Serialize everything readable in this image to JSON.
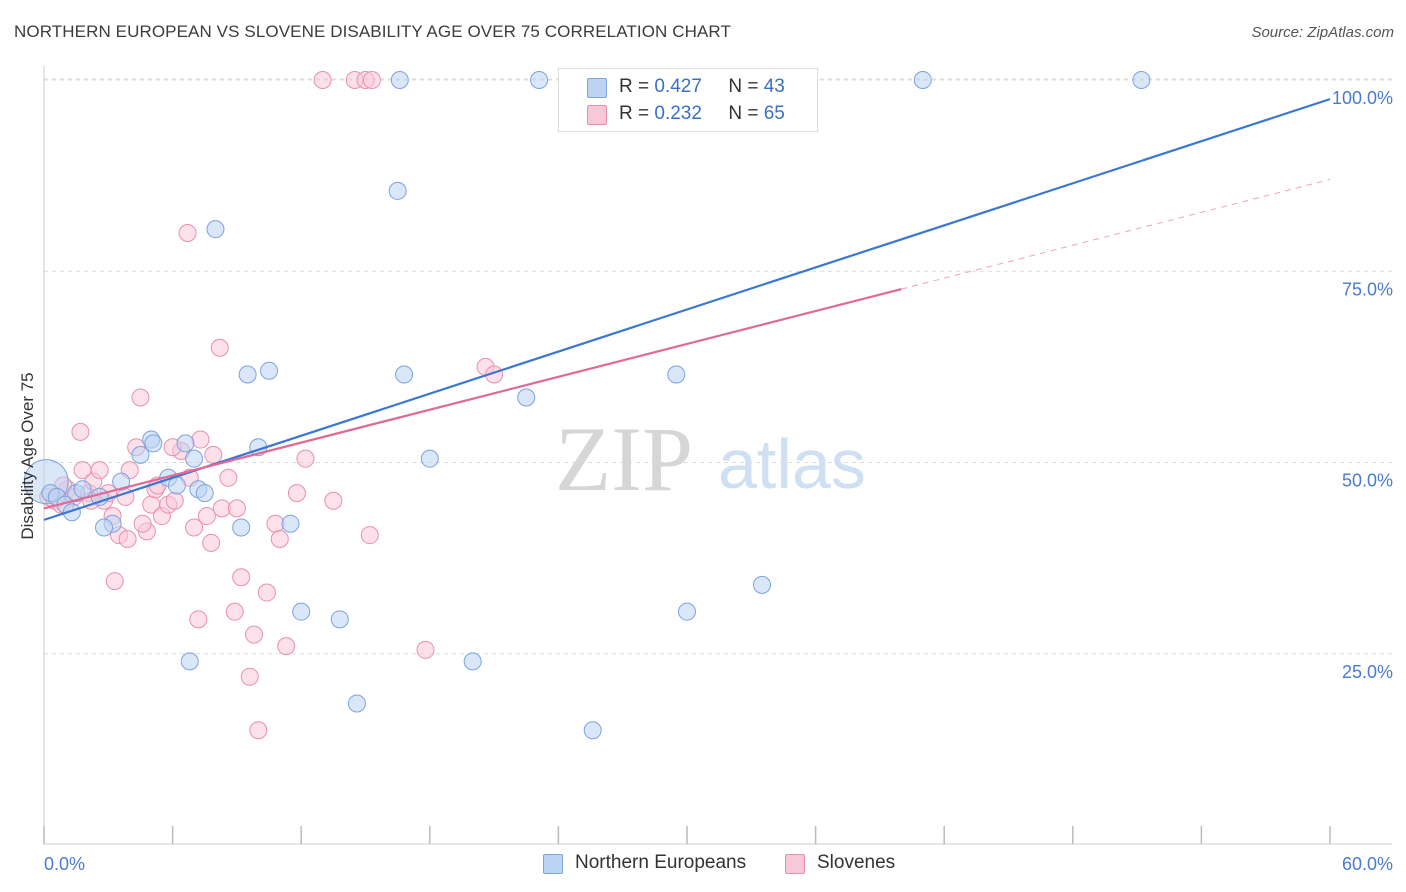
{
  "title": "NORTHERN EUROPEAN VS SLOVENE DISABILITY AGE OVER 75 CORRELATION CHART",
  "source": "Source: ZipAtlas.com",
  "watermark": {
    "zip": "ZIP",
    "atlas": "atlas"
  },
  "legend": {
    "r_label": "R =",
    "n_label": "N =",
    "rows": [
      {
        "r": "0.427",
        "n": "43"
      },
      {
        "r": "0.232",
        "n": "65"
      }
    ]
  },
  "bottom_legend": [
    "Northern Europeans",
    "Slovenes"
  ],
  "colors": {
    "blue": "#3a78d4",
    "blue_fill": "#bcd3f2",
    "pink": "#e06a96",
    "pink_fill": "#f9c8d8",
    "axis_label": "#4a7cc9"
  },
  "chart_data": {
    "type": "scatter",
    "title": "NORTHERN EUROPEAN VS SLOVENE DISABILITY AGE OVER 75 CORRELATION CHART",
    "xlabel": "",
    "ylabel": "Disability Age Over 75",
    "xlim": [
      0,
      60
    ],
    "ylim": [
      0,
      105
    ],
    "x_tick_labels": [
      "0.0%",
      "60.0%"
    ],
    "y_tick_labels": [
      "100.0%",
      "75.0%",
      "50.0%",
      "25.0%"
    ],
    "y_ticks": [
      100,
      75,
      50,
      25
    ],
    "grid": true,
    "series": [
      {
        "name": "Northern Europeans",
        "color": "#3a78d4",
        "trend": {
          "x": [
            0,
            60
          ],
          "y": [
            42.5,
            97.5
          ],
          "dashed_from": null
        },
        "points": [
          [
            0.1,
            47.5
          ],
          [
            0.3,
            46
          ],
          [
            0.6,
            45.5
          ],
          [
            1.0,
            44.5
          ],
          [
            1.5,
            46
          ],
          [
            1.8,
            46.5
          ],
          [
            2.6,
            45.5
          ],
          [
            3.2,
            42
          ],
          [
            3.6,
            47.5
          ],
          [
            4.5,
            51
          ],
          [
            5.0,
            53
          ],
          [
            5.8,
            48
          ],
          [
            6.2,
            47
          ],
          [
            6.6,
            52.5
          ],
          [
            7.0,
            50.5
          ],
          [
            7.2,
            46.5
          ],
          [
            7.5,
            46
          ],
          [
            8.0,
            80.5
          ],
          [
            9.2,
            41.5
          ],
          [
            9.5,
            61.5
          ],
          [
            10.0,
            52
          ],
          [
            10.5,
            62
          ],
          [
            11.5,
            42
          ],
          [
            12.0,
            30.5
          ],
          [
            13.8,
            29.5
          ],
          [
            14.6,
            18.5
          ],
          [
            16.5,
            85.5
          ],
          [
            16.6,
            100
          ],
          [
            16.8,
            61.5
          ],
          [
            18.0,
            50.5
          ],
          [
            20.0,
            24
          ],
          [
            22.5,
            58.5
          ],
          [
            23.1,
            100
          ],
          [
            25.6,
            15
          ],
          [
            29.5,
            61.5
          ],
          [
            30.0,
            30.5
          ],
          [
            33.5,
            34
          ],
          [
            41.0,
            100
          ],
          [
            51.2,
            100
          ],
          [
            5.1,
            52.5
          ],
          [
            6.8,
            24
          ],
          [
            2.8,
            41.5
          ],
          [
            1.3,
            43.5
          ]
        ]
      },
      {
        "name": "Slovenes",
        "color": "#e06a96",
        "trend": {
          "x": [
            0,
            60
          ],
          "y": [
            44,
            87
          ],
          "dashed_from": 40
        },
        "points": [
          [
            0.2,
            45.5
          ],
          [
            0.5,
            45
          ],
          [
            0.8,
            44.5
          ],
          [
            1.1,
            46.5
          ],
          [
            1.4,
            45.5
          ],
          [
            1.8,
            49
          ],
          [
            2.1,
            46
          ],
          [
            2.3,
            47.5
          ],
          [
            2.6,
            49
          ],
          [
            2.8,
            45
          ],
          [
            3.0,
            46
          ],
          [
            3.2,
            43
          ],
          [
            3.5,
            40.5
          ],
          [
            3.8,
            45.5
          ],
          [
            4.0,
            49
          ],
          [
            4.3,
            52
          ],
          [
            4.5,
            58.5
          ],
          [
            4.8,
            41
          ],
          [
            5.0,
            44.5
          ],
          [
            5.2,
            46.5
          ],
          [
            5.5,
            43
          ],
          [
            5.8,
            44.5
          ],
          [
            6.1,
            45
          ],
          [
            6.4,
            51.5
          ],
          [
            6.8,
            48
          ],
          [
            7.0,
            41.5
          ],
          [
            7.3,
            53
          ],
          [
            7.6,
            43
          ],
          [
            7.8,
            39.5
          ],
          [
            8.3,
            44
          ],
          [
            8.6,
            48
          ],
          [
            8.9,
            30.5
          ],
          [
            9.2,
            35
          ],
          [
            9.6,
            22
          ],
          [
            10.0,
            15
          ],
          [
            10.4,
            33
          ],
          [
            10.8,
            42
          ],
          [
            11.3,
            26
          ],
          [
            11.8,
            46
          ],
          [
            12.2,
            50.5
          ],
          [
            13.0,
            100
          ],
          [
            14.5,
            100
          ],
          [
            15.0,
            100
          ],
          [
            15.3,
            100
          ],
          [
            17.8,
            25.5
          ],
          [
            20.6,
            62.5
          ],
          [
            21.0,
            61.5
          ],
          [
            35.2,
            100
          ],
          [
            1.7,
            54
          ],
          [
            3.3,
            34.5
          ],
          [
            5.3,
            47
          ],
          [
            6.7,
            80
          ],
          [
            8.2,
            65
          ],
          [
            9.0,
            44
          ],
          [
            9.8,
            27.5
          ],
          [
            7.2,
            29.5
          ],
          [
            11.0,
            40
          ],
          [
            13.5,
            45
          ],
          [
            15.2,
            40.5
          ],
          [
            3.9,
            40
          ],
          [
            2.2,
            45
          ],
          [
            0.9,
            47
          ],
          [
            6.0,
            52
          ],
          [
            7.9,
            51
          ],
          [
            4.6,
            42
          ]
        ]
      }
    ]
  }
}
